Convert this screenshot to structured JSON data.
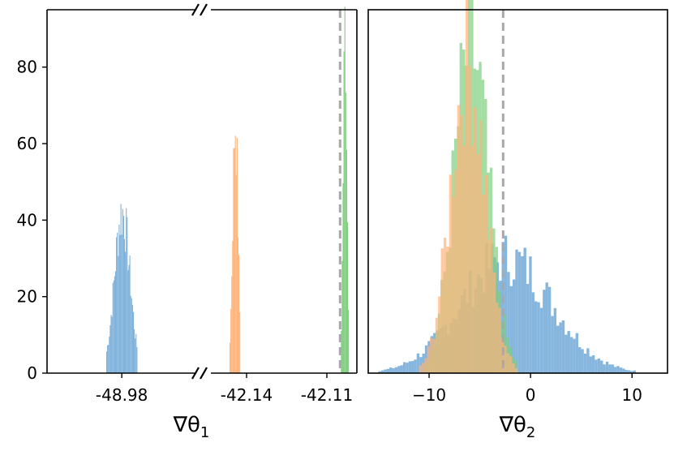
{
  "chart_data": [
    {
      "type": "histogram",
      "panel": "left",
      "xlabel": "∇θ",
      "xlabel_sub": "1",
      "x_ticks": [
        "-48.98",
        "-42.14",
        "-42.11"
      ],
      "y_ticks": [
        "0",
        "20",
        "40",
        "60",
        "80"
      ],
      "ylim": [
        0,
        95
      ],
      "broken_axis": true,
      "colors": {
        "blue": "#7fb2db",
        "orange": "#ffb47a",
        "green": "#7ecf7e",
        "overlap": "#c9a23e",
        "vline": "#a8a8a8"
      },
      "series": [
        {
          "color": "blue",
          "segment": 0,
          "center_frac": 0.48,
          "width_frac": 0.2,
          "peak": 42
        },
        {
          "color": "orange",
          "segment": 1,
          "center_frac": 0.2,
          "width_frac": 0.07,
          "peak": 66
        },
        {
          "color": "green",
          "segment": 1,
          "center_frac": 0.92,
          "width_frac": 0.05,
          "peak": 91
        }
      ],
      "vline_frac": 0.89
    },
    {
      "type": "histogram",
      "panel": "right",
      "xlabel": "∇θ",
      "xlabel_sub": "2",
      "x_ticks": [
        {
          "label": "−10",
          "value": -10
        },
        {
          "label": "0",
          "value": 0
        },
        {
          "label": "10",
          "value": 10
        }
      ],
      "xlim": [
        -16,
        13.5
      ],
      "ylim": [
        0,
        95
      ],
      "vline": -2.7,
      "series": [
        {
          "color": "blue",
          "mean": -2.5,
          "sd": 4.5,
          "peak": 30,
          "min": -15,
          "max": 11
        },
        {
          "color": "green",
          "mean": -6.0,
          "sd": 1.7,
          "peak": 85,
          "min": -10.5,
          "max": -1.5
        },
        {
          "color": "orange",
          "mean": -6.3,
          "sd": 1.7,
          "peak": 80,
          "min": -11,
          "max": -1.5
        }
      ]
    }
  ]
}
